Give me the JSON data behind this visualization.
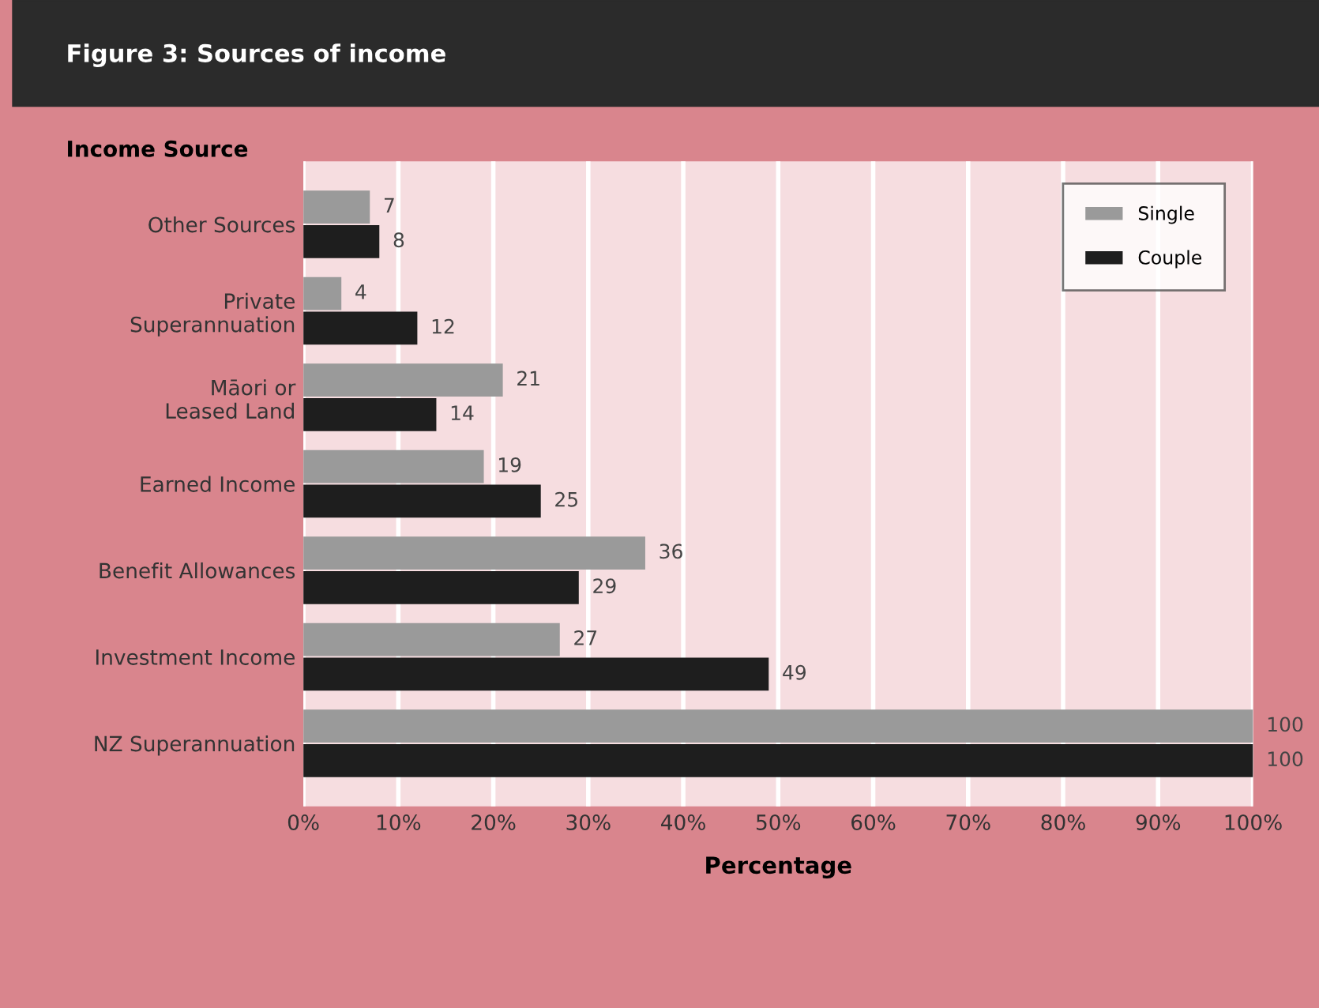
{
  "chart_data": {
    "type": "bar",
    "orientation": "horizontal",
    "title": "Figure 3: Sources of income",
    "xlabel": "Percentage",
    "ylabel": "Income Source",
    "categories": [
      "Other Sources",
      "Private\nSuperannuation",
      "Māori or\nLeased Land",
      "Earned Income",
      "Benefit Allowances",
      "Investment Income",
      "NZ Superannuation"
    ],
    "series": [
      {
        "name": "Single",
        "color": "#9a9a9a",
        "values": [
          7,
          4,
          21,
          19,
          36,
          27,
          100
        ]
      },
      {
        "name": "Couple",
        "color": "#1e1e1e",
        "values": [
          8,
          12,
          14,
          25,
          29,
          49,
          100
        ]
      }
    ],
    "xlim": [
      0,
      100
    ],
    "xticks": [
      {
        "value": 0,
        "label": "0%"
      },
      {
        "value": 10,
        "label": "10%"
      },
      {
        "value": 20,
        "label": "20%"
      },
      {
        "value": 30,
        "label": "30%"
      },
      {
        "value": 40,
        "label": "40%"
      },
      {
        "value": 50,
        "label": "50%"
      },
      {
        "value": 60,
        "label": "60%"
      },
      {
        "value": 70,
        "label": "70%"
      },
      {
        "value": 80,
        "label": "80%"
      },
      {
        "value": 90,
        "label": "90%"
      },
      {
        "value": 100,
        "label": "100%"
      }
    ],
    "data_labels": true,
    "legend": "top right",
    "grid": "x"
  }
}
